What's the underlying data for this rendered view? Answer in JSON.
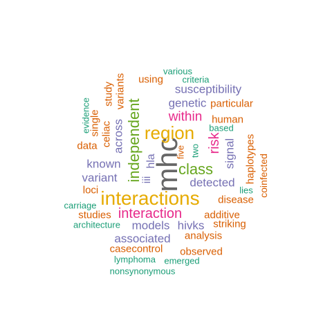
{
  "palette": {
    "teal": "#1b9e77",
    "orange": "#d95f02",
    "purple": "#7570b3",
    "magenta": "#e7298a",
    "green": "#66a61e",
    "gold": "#e6ab02",
    "gray": "#666666"
  },
  "words": {
    "mhc": "mhc",
    "interactions": "interactions",
    "region": "region",
    "interaction": "interaction",
    "independent": "independent",
    "class": "class",
    "within": "within",
    "risk": "risk",
    "susceptibility": "susceptibility",
    "genetic": "genetic",
    "detected": "detected",
    "associated": "associated",
    "known": "known",
    "variant": "variant",
    "models": "models",
    "hivks": "hivks",
    "across": "across",
    "signal": "signal",
    "particular": "particular",
    "human": "human",
    "haplotypes": "haplotypes",
    "additive": "additive",
    "disease": "disease",
    "analysis": "analysis",
    "striking": "striking",
    "observed": "observed",
    "casecontrol": "casecontrol",
    "studies": "studies",
    "loci": "loci",
    "data": "data",
    "celiac": "celiac",
    "single": "single",
    "study": "study",
    "variants": "variants",
    "using": "using",
    "criteria": "criteria",
    "various": "various",
    "evidence": "evidence",
    "hla": "hla",
    "iii": "iii",
    "five": "five",
    "two": "two",
    "based": "based",
    "lies": "lies",
    "coinfected": "coinfected",
    "carriage": "carriage",
    "architecture": "architecture",
    "lymphoma": "lymphoma",
    "emerged": "emerged",
    "nonsynonymous": "nonsynonymous"
  }
}
